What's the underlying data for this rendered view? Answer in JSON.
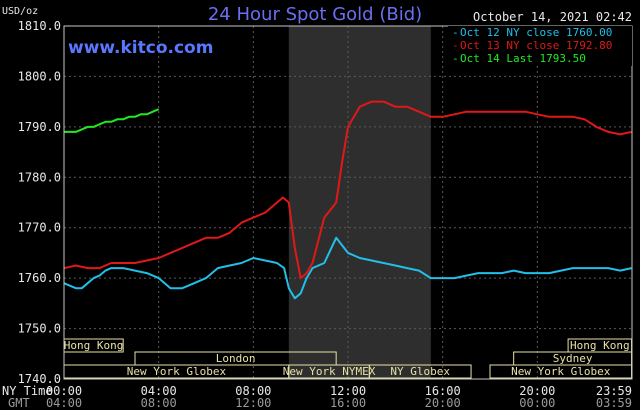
{
  "chart_data": {
    "type": "line",
    "title": "24 Hour Spot Gold (Bid)",
    "date": "October 14, 2021 02:42",
    "website": "www.kitco.com",
    "ylabel": "USD/oz",
    "ylim": [
      1740,
      1810
    ],
    "yticks": [
      "1810.0",
      "1800.0",
      "1790.0",
      "1780.0",
      "1770.0",
      "1760.0",
      "1750.0",
      "1740.0"
    ],
    "xlim": [
      0,
      24
    ],
    "xticks_ny": [
      "00:00",
      "04:00",
      "08:00",
      "12:00",
      "16:00",
      "20:00",
      "23:59"
    ],
    "xticks_gmt": [
      "04:00",
      "08:00",
      "12:00",
      "16:00",
      "20:00",
      "00:00",
      "03:59"
    ],
    "ny_time_label": "NY Time",
    "gmt_label": "GMT",
    "highlight_range_hours": [
      9.5,
      15.5
    ],
    "grid": true,
    "legend": "top-right",
    "colors": {
      "background": "#000000",
      "frame": "#c8c8c8",
      "grid": "#5a5a5a",
      "highlight": "#2e2e2e",
      "title": "#6a6ef0",
      "website": "#5a78ff",
      "market_box": "#e6e1a8"
    },
    "series": [
      {
        "name": "Oct 12 NY close 1760.00",
        "color": "#22bfe8",
        "x": [
          0,
          0.25,
          0.5,
          0.75,
          1,
          1.25,
          1.5,
          1.75,
          2,
          2.5,
          3,
          3.5,
          4,
          4.5,
          5,
          5.5,
          6,
          6.5,
          7,
          7.5,
          8,
          8.5,
          9,
          9.3,
          9.5,
          9.75,
          10,
          10.25,
          10.5,
          11,
          11.5,
          12,
          12.5,
          13,
          13.5,
          14,
          14.5,
          15,
          15.5,
          16,
          16.5,
          17,
          17.5,
          18,
          18.5,
          19,
          19.5,
          20,
          20.5,
          21,
          21.5,
          22,
          22.5,
          23,
          23.5,
          23.98
        ],
        "values": [
          1759,
          1758.5,
          1758,
          1758,
          1759,
          1760,
          1760.5,
          1761.5,
          1762,
          1762,
          1761.5,
          1761,
          1760,
          1758,
          1758,
          1759,
          1760,
          1762,
          1762.5,
          1763,
          1764,
          1763.5,
          1763,
          1762,
          1758,
          1756,
          1757,
          1760,
          1762,
          1763,
          1768,
          1765,
          1764,
          1763.5,
          1763,
          1762.5,
          1762,
          1761.5,
          1760,
          1760,
          1760,
          1760.5,
          1761,
          1761,
          1761,
          1761.5,
          1761,
          1761,
          1761,
          1761.5,
          1762,
          1762,
          1762,
          1762,
          1761.5,
          1762
        ]
      },
      {
        "name": "Oct 13 NY close 1792.80",
        "color": "#e01818",
        "x": [
          0,
          0.5,
          1,
          1.5,
          2,
          2.5,
          3,
          3.5,
          4,
          4.5,
          5,
          5.5,
          6,
          6.5,
          7,
          7.5,
          8,
          8.5,
          9,
          9.25,
          9.5,
          9.75,
          10,
          10.25,
          10.5,
          11,
          11.5,
          11.75,
          12,
          12.5,
          13,
          13.5,
          14,
          14.5,
          15,
          15.5,
          16,
          16.5,
          17,
          17.5,
          18,
          18.5,
          19,
          19.5,
          20,
          20.5,
          21,
          21.5,
          22,
          22.5,
          23,
          23.5,
          23.98
        ],
        "values": [
          1762,
          1762.5,
          1762,
          1762,
          1763,
          1763,
          1763,
          1763.5,
          1764,
          1765,
          1766,
          1767,
          1768,
          1768,
          1769,
          1771,
          1772,
          1773,
          1775,
          1776,
          1775,
          1766,
          1760,
          1761,
          1763,
          1772,
          1775,
          1783,
          1790,
          1794,
          1795,
          1795,
          1794,
          1794,
          1793,
          1792,
          1792,
          1792.5,
          1793,
          1793,
          1793,
          1793,
          1793,
          1793,
          1792.5,
          1792,
          1792,
          1792,
          1791.5,
          1790,
          1789,
          1788.5,
          1789
        ]
      },
      {
        "name": "Oct 14 Last 1793.50",
        "color": "#22e822",
        "x": [
          0,
          0.25,
          0.5,
          0.75,
          1,
          1.25,
          1.5,
          1.75,
          2,
          2.25,
          2.5,
          2.75,
          3,
          3.25,
          3.5,
          3.75,
          4
        ],
        "values": [
          1789,
          1789,
          1789,
          1789.5,
          1790,
          1790,
          1790.5,
          1791,
          1791,
          1791.5,
          1791.5,
          1792,
          1792,
          1792.5,
          1792.5,
          1793,
          1793.5
        ]
      }
    ],
    "markets": [
      {
        "name": "Hong Kong",
        "start": 0,
        "end": 2.5,
        "row": 1
      },
      {
        "name": "London",
        "start": 3,
        "end": 11.5,
        "row": 2
      },
      {
        "name": "New York Globex",
        "start": 0,
        "end": 9.5,
        "row": 3
      },
      {
        "name": "New York NYMEX",
        "start": 9.5,
        "end": 12.9,
        "row": 3
      },
      {
        "name": "NY Globex",
        "start": 12.9,
        "end": 17.2,
        "row": 3
      },
      {
        "name": "Hong Kong",
        "start": 21.3,
        "end": 23.98,
        "row": 1
      },
      {
        "name": "Sydney",
        "start": 19.0,
        "end": 23.98,
        "row": 2
      },
      {
        "name": "New York Globex",
        "start": 18.0,
        "end": 23.98,
        "row": 3
      }
    ]
  }
}
